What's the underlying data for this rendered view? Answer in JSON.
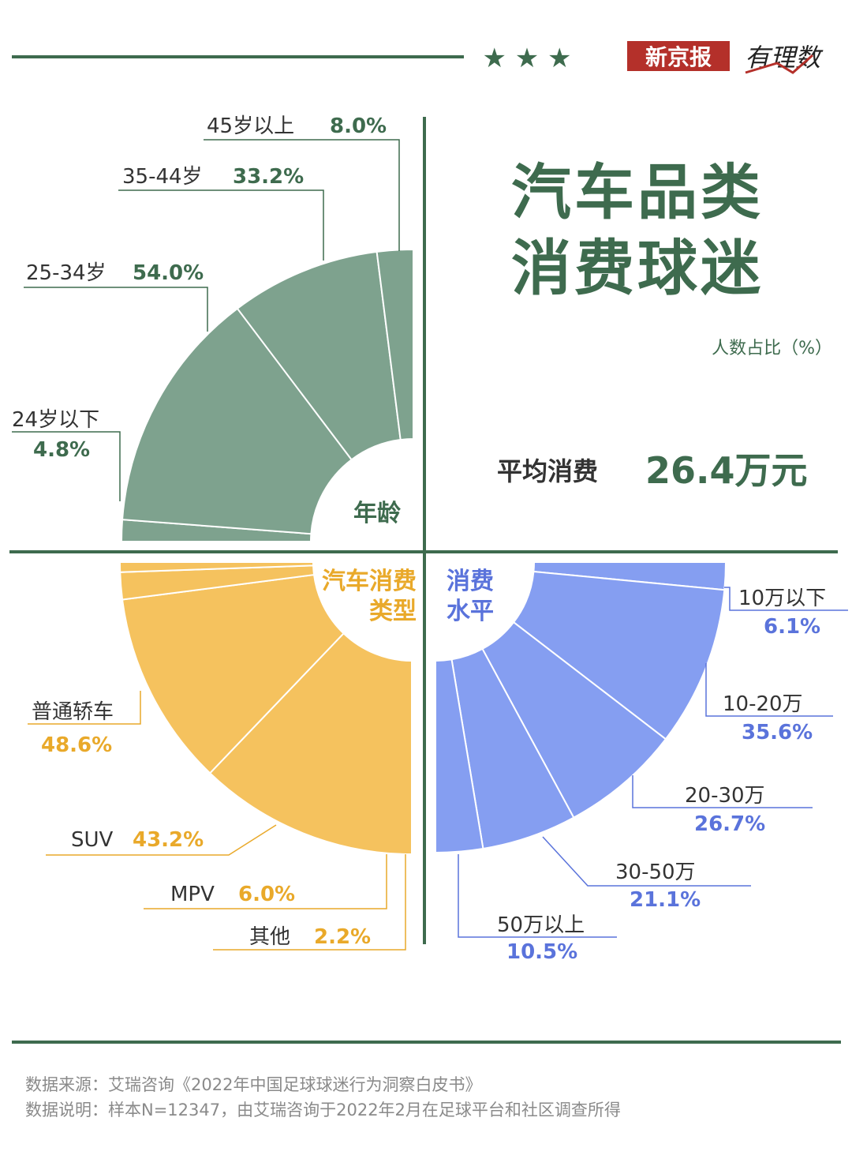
{
  "header": {
    "brand_cn": "新京报",
    "brand_script": "有理数",
    "stars": "★ ★ ★"
  },
  "title": {
    "line1": "汽车品类",
    "line2": "消费球迷"
  },
  "unit_note": "人数占比（%）",
  "avg": {
    "label": "平均消费",
    "value": "26.4万元"
  },
  "colors": {
    "green": "#7ea28e",
    "dark_green": "#3e6b4e",
    "yellow": "#f5c25e",
    "yellow_text": "#e9a92a",
    "blue": "#859ef1",
    "blue_text": "#5a73db"
  },
  "chart_data": [
    {
      "type": "pie",
      "hub_label": "年龄",
      "categories": [
        "24岁以下",
        "25-34岁",
        "35-44岁",
        "45岁以上"
      ],
      "values": [
        4.8,
        54.0,
        33.2,
        8.0
      ],
      "value_labels": [
        "4.8%",
        "54.0%",
        "33.2%",
        "8.0%"
      ]
    },
    {
      "type": "pie",
      "hub_label": "汽车消费类型",
      "hub_lines": [
        "汽车消费",
        "类型"
      ],
      "categories": [
        "普通轿车",
        "SUV",
        "MPV",
        "其他"
      ],
      "values": [
        48.6,
        43.2,
        6.0,
        2.2
      ],
      "value_labels": [
        "48.6%",
        "43.2%",
        "6.0%",
        "2.2%"
      ]
    },
    {
      "type": "pie",
      "hub_label": "消费水平",
      "hub_lines": [
        "消费",
        "水平"
      ],
      "categories": [
        "10万以下",
        "10-20万",
        "20-30万",
        "30-50万",
        "50万以上"
      ],
      "values": [
        6.1,
        35.6,
        26.7,
        21.1,
        10.5
      ],
      "value_labels": [
        "6.1%",
        "35.6%",
        "26.7%",
        "21.1%",
        "10.5%"
      ]
    }
  ],
  "footer": {
    "source": "数据来源：艾瑞咨询《2022年中国足球球迷行为洞察白皮书》",
    "note": "数据说明：样本N=12347，由艾瑞咨询于2022年2月在足球平台和社区调查所得"
  }
}
